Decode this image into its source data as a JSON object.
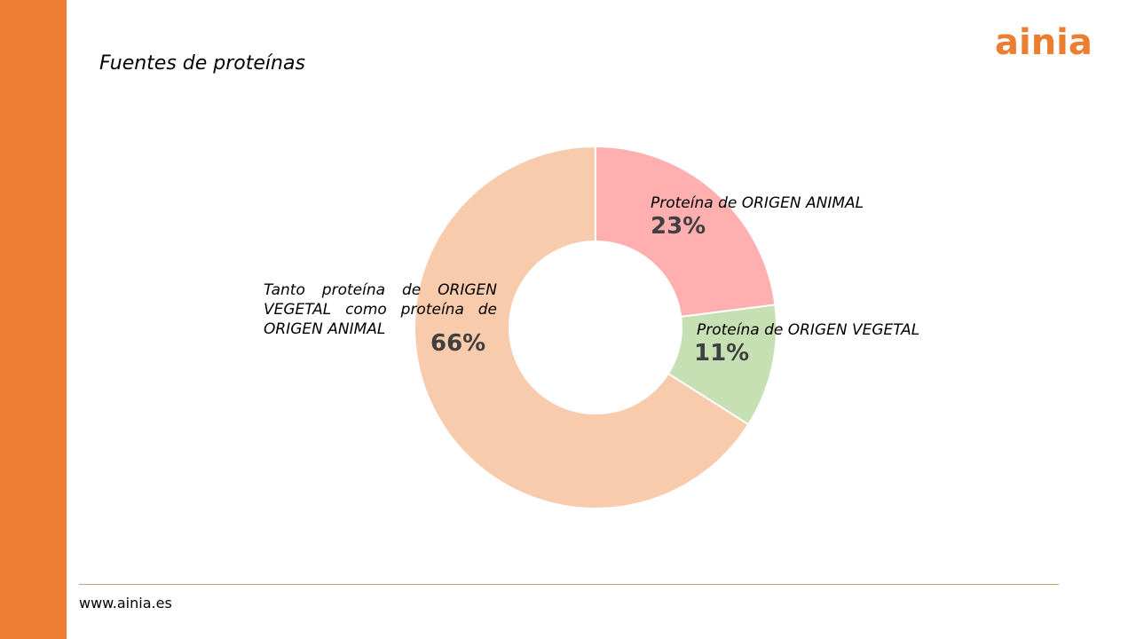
{
  "slide": {
    "title": "Fuentes de proteínas",
    "logo_text": "ainia",
    "footer_url": "www.ainia.es"
  },
  "colors": {
    "accent": "#ED7D31",
    "footer_rule": "#C9A27A",
    "slice_border": "#FFFFFF"
  },
  "chart_data": {
    "type": "pie",
    "variant": "doughnut",
    "title": "",
    "start": "12 o'clock, clockwise",
    "series": [
      {
        "slices": [
          {
            "label": "Proteína de ORIGEN ANIMAL",
            "value": 23,
            "display": "23%",
            "color": "#FFAFAF"
          },
          {
            "label": "Proteína de ORIGEN VEGETAL",
            "value": 11,
            "display": "11%",
            "color": "#C6E0B4"
          },
          {
            "label": "Tanto proteína de ORIGEN VEGETAL como proteína de ORIGEN ANIMAL",
            "value": 66,
            "display": "66%",
            "color": "#F8CBAD"
          }
        ]
      }
    ]
  }
}
